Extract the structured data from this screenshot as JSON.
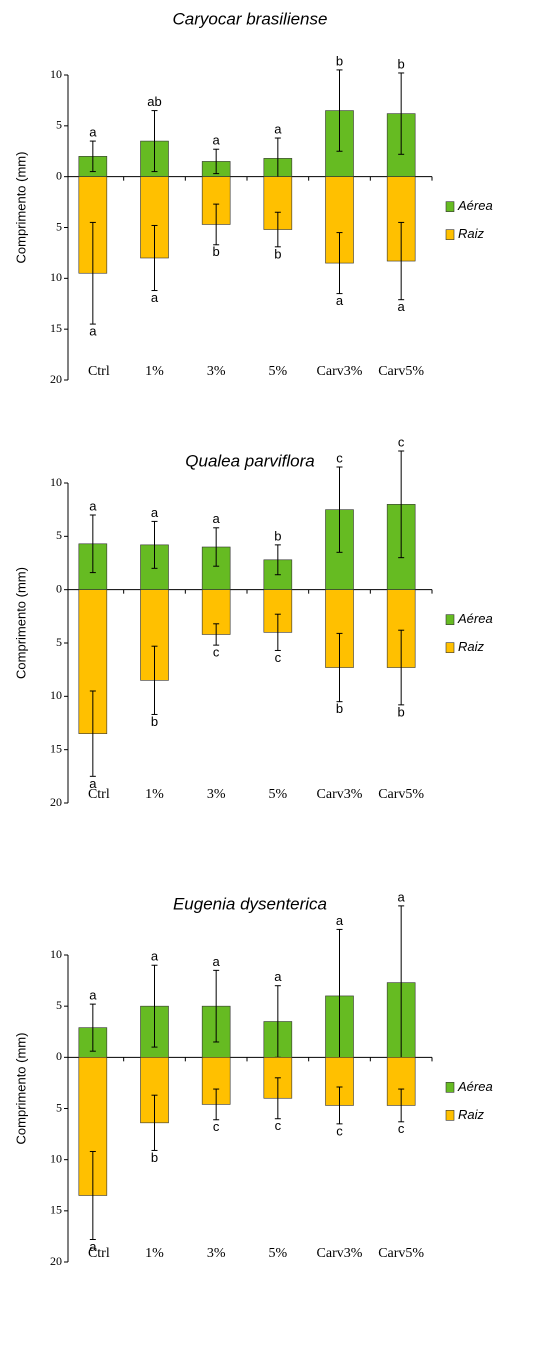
{
  "chart_data": [
    {
      "type": "bar",
      "title": "Caryocar brasiliense",
      "ylabel": "Comprimento (mm)",
      "categories": [
        "Ctrl",
        "1%",
        "3%",
        "5%",
        "Carv3%",
        "Carv5%"
      ],
      "series": [
        {
          "name": "Aérea",
          "color": "#66bb22",
          "values": [
            2,
            3.5,
            1.5,
            1.8,
            6.5,
            6.2
          ],
          "errors": [
            1.5,
            3,
            1.2,
            2,
            4,
            4
          ],
          "letters": [
            "a",
            "ab",
            "a",
            "a",
            "b",
            "b"
          ]
        },
        {
          "name": "Raiz",
          "color": "#ffc000",
          "values": [
            -9.5,
            -8,
            -4.7,
            -5.2,
            -8.5,
            -8.3
          ],
          "errors": [
            5,
            3.2,
            2,
            1.7,
            3,
            3.8
          ],
          "letters": [
            "a",
            "a",
            "b",
            "b",
            "a",
            "a"
          ]
        }
      ],
      "ylim": [
        -20,
        10
      ],
      "yticks": [
        10,
        5,
        0,
        {
          "value": -5,
          "label": "5"
        },
        {
          "value": -10,
          "label": "10"
        },
        {
          "value": -15,
          "label": "15"
        },
        {
          "value": -20,
          "label": "20"
        }
      ]
    },
    {
      "type": "bar",
      "title": "Qualea parviflora",
      "ylabel": "Comprimento (mm)",
      "categories": [
        "Ctrl",
        "1%",
        "3%",
        "5%",
        "Carv3%",
        "Carv5%"
      ],
      "series": [
        {
          "name": "Aérea",
          "color": "#66bb22",
          "values": [
            4.3,
            4.2,
            4,
            2.8,
            7.5,
            8
          ],
          "errors": [
            2.7,
            2.2,
            1.8,
            1.4,
            4,
            5
          ],
          "letters": [
            "a",
            "a",
            "a",
            "b",
            "c",
            "c"
          ]
        },
        {
          "name": "Raiz",
          "color": "#ffc000",
          "values": [
            -13.5,
            -8.5,
            -4.2,
            -4,
            -7.3,
            -7.3
          ],
          "errors": [
            4,
            3.2,
            1,
            1.7,
            3.2,
            3.5
          ],
          "letters": [
            "a",
            "b",
            "c",
            "c",
            "b",
            "b"
          ]
        }
      ],
      "ylim": [
        -20,
        10
      ],
      "yticks": [
        10,
        5,
        0,
        {
          "value": -5,
          "label": "5"
        },
        {
          "value": -10,
          "label": "10"
        },
        {
          "value": -15,
          "label": "15"
        },
        {
          "value": -20,
          "label": "20"
        }
      ]
    },
    {
      "type": "bar",
      "title": "Eugenia dysenterica",
      "ylabel": "Comprimento (mm)",
      "categories": [
        "Ctrl",
        "1%",
        "3%",
        "5%",
        "Carv3%",
        "Carv5%"
      ],
      "series": [
        {
          "name": "Aérea",
          "color": "#66bb22",
          "values": [
            2.9,
            5,
            5,
            3.5,
            6,
            7.3
          ],
          "errors": [
            2.3,
            4,
            3.5,
            3.5,
            6.5,
            7.5
          ],
          "letters": [
            "a",
            "a",
            "a",
            "a",
            "a",
            "a"
          ]
        },
        {
          "name": "Raiz",
          "color": "#ffc000",
          "values": [
            -13.5,
            -6.4,
            -4.6,
            -4,
            -4.7,
            -4.7
          ],
          "errors": [
            4.3,
            2.7,
            1.5,
            2,
            1.8,
            1.6
          ],
          "letters": [
            "a",
            "b",
            "c",
            "c",
            "c",
            "c"
          ]
        }
      ],
      "ylim": [
        -20,
        10
      ],
      "yticks": [
        10,
        5,
        0,
        {
          "value": -5,
          "label": "5"
        },
        {
          "value": -10,
          "label": "10"
        },
        {
          "value": -15,
          "label": "15"
        },
        {
          "value": -20,
          "label": "20"
        }
      ]
    }
  ]
}
